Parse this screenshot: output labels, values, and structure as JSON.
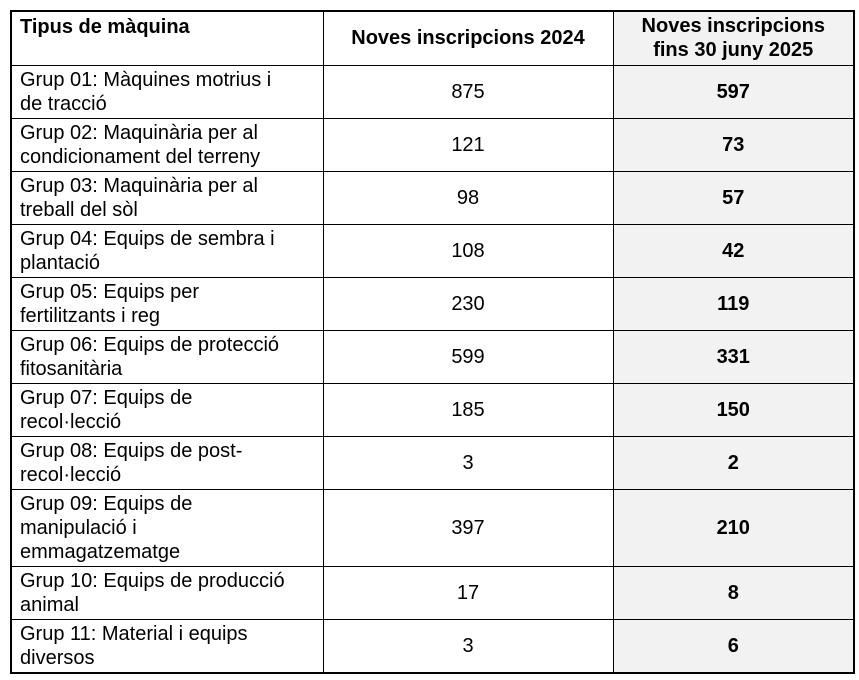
{
  "table": {
    "header": {
      "col1": "Tipus de màquina",
      "col2": "Noves inscripcions 2024",
      "col3_lines": [
        "Noves inscripcions",
        "fins 30 juny 2025"
      ]
    },
    "rows": [
      {
        "label_lines": [
          "Grup 01: Màquines motrius i",
          "de tracció"
        ],
        "v2024": "875",
        "v2025": "597"
      },
      {
        "label_lines": [
          "Grup 02: Maquinària per al",
          "condicionament del terreny"
        ],
        "v2024": "121",
        "v2025": "73"
      },
      {
        "label_lines": [
          "Grup 03: Maquinària per al",
          "treball del sòl"
        ],
        "v2024": "98",
        "v2025": "57"
      },
      {
        "label_lines": [
          "Grup 04: Equips de sembra i",
          "plantació"
        ],
        "v2024": "108",
        "v2025": "42"
      },
      {
        "label_lines": [
          "Grup 05: Equips per",
          "fertilitzants i reg"
        ],
        "v2024": "230",
        "v2025": "119"
      },
      {
        "label_lines": [
          "Grup 06: Equips de protecció",
          "fitosanitària"
        ],
        "v2024": "599",
        "v2025": "331"
      },
      {
        "label_lines": [
          "Grup 07: Equips de",
          "recol·lecció"
        ],
        "v2024": "185",
        "v2025": "150"
      },
      {
        "label_lines": [
          "Grup 08: Equips de post-",
          "recol·lecció"
        ],
        "v2024": "3",
        "v2025": "2"
      },
      {
        "label_lines": [
          "Grup 09: Equips de",
          "manipulació i",
          "emmagatzematge"
        ],
        "v2024": "397",
        "v2025": "210"
      },
      {
        "label_lines": [
          "Grup 10: Equips de producció",
          "animal"
        ],
        "v2024": "17",
        "v2025": "8"
      },
      {
        "label_lines": [
          "Grup 11: Material i equips",
          "diversos"
        ],
        "v2024": "3",
        "v2025": "6"
      }
    ]
  },
  "colors": {
    "highlight_column_bg": "#f2f2f2",
    "border": "#000000",
    "text": "#000000",
    "page_bg": "#ffffff"
  }
}
